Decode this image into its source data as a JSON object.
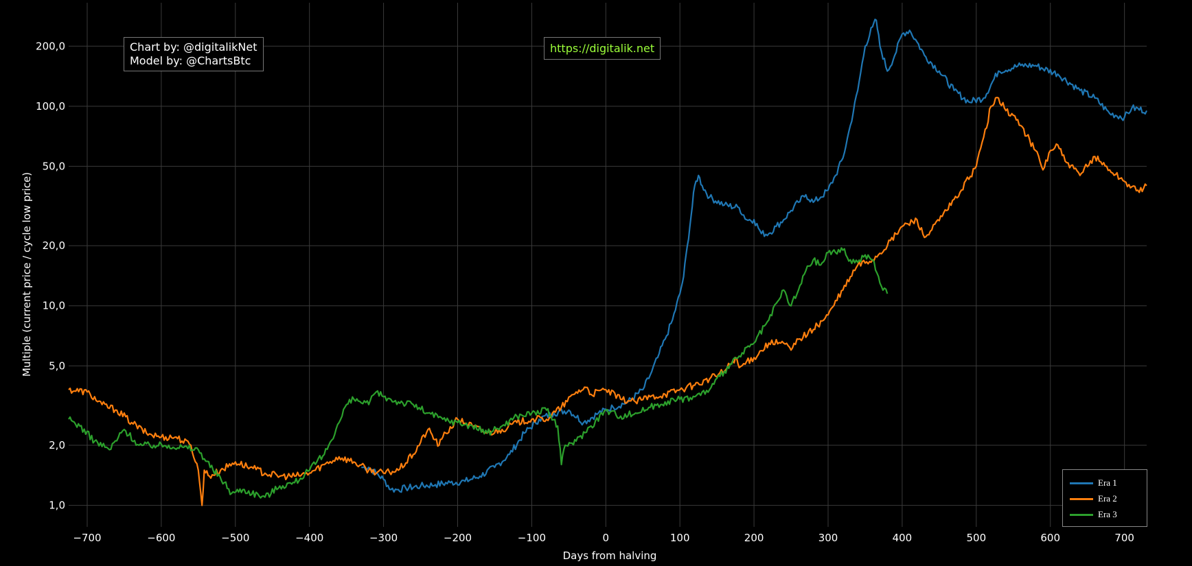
{
  "chart_data": {
    "type": "line",
    "title": "",
    "xlabel": "Days from halving",
    "ylabel": "Multiple (current price / cycle low price)",
    "xlim": [
      -725,
      730
    ],
    "ylim": [
      0.78,
      330
    ],
    "y_scale": "log",
    "x_ticks": [
      "−700",
      "−600",
      "−500",
      "−400",
      "−300",
      "−200",
      "−100",
      "0",
      "100",
      "200",
      "300",
      "400",
      "500",
      "600",
      "700"
    ],
    "y_ticks": [
      "1,0",
      "2,0",
      "5,0",
      "10,0",
      "20,0",
      "50,0",
      "100,0",
      "200,0"
    ],
    "grid": true,
    "legend_position": "bottom-right",
    "annotations": {
      "credit_line1": "Chart by: @digitalikNet",
      "credit_line2": "Model by: @ChartsBtc",
      "url": "https://digitalik.net"
    },
    "series": [
      {
        "name": "Era 1",
        "color": "#1f77b4",
        "x": [
          -330,
          -320,
          -310,
          -300,
          -290,
          -280,
          -270,
          -250,
          -230,
          -210,
          -190,
          -170,
          -150,
          -130,
          -110,
          -90,
          -70,
          -50,
          -30,
          -10,
          10,
          30,
          50,
          60,
          70,
          80,
          90,
          100,
          105,
          110,
          115,
          120,
          125,
          130,
          140,
          160,
          180,
          190,
          200,
          210,
          220,
          230,
          240,
          250,
          260,
          270,
          280,
          290,
          300,
          310,
          320,
          330,
          340,
          350,
          360,
          365,
          370,
          380,
          390,
          400,
          410,
          420,
          430,
          450,
          470,
          490,
          510,
          530,
          560,
          580,
          610,
          640,
          660,
          680,
          700,
          710,
          730
        ],
        "values": [
          1.55,
          1.55,
          1.45,
          1.35,
          1.2,
          1.2,
          1.22,
          1.25,
          1.27,
          1.3,
          1.32,
          1.4,
          1.55,
          1.8,
          2.3,
          2.7,
          2.9,
          3.0,
          2.6,
          2.9,
          3.1,
          3.3,
          3.8,
          4.5,
          5.5,
          6.8,
          8.5,
          11.5,
          14.0,
          20.0,
          28.0,
          40.0,
          45.0,
          40.0,
          35.0,
          32.0,
          31.0,
          27.0,
          27.0,
          23.0,
          23.0,
          25.0,
          27.0,
          30.0,
          33.0,
          36.0,
          33.0,
          35.0,
          38.0,
          45.0,
          55.0,
          80.0,
          120.0,
          200.0,
          250.0,
          270.0,
          200.0,
          150.0,
          180.0,
          230.0,
          240.0,
          210.0,
          180.0,
          150.0,
          120.0,
          105.0,
          110.0,
          150.0,
          160.0,
          160.0,
          145.0,
          120.0,
          110.0,
          92.0,
          88.0,
          98.0,
          95.0
        ]
      },
      {
        "name": "Era 2",
        "color": "#ff7f0e",
        "x": [
          -725,
          -700,
          -680,
          -660,
          -640,
          -620,
          -600,
          -580,
          -560,
          -550,
          -545,
          -542,
          -535,
          -520,
          -500,
          -480,
          -460,
          -440,
          -420,
          -400,
          -380,
          -360,
          -340,
          -320,
          -300,
          -280,
          -260,
          -240,
          -225,
          -220,
          -200,
          -180,
          -160,
          -140,
          -120,
          -100,
          -80,
          -60,
          -40,
          -25,
          -20,
          0,
          20,
          40,
          60,
          80,
          100,
          120,
          140,
          160,
          175,
          180,
          200,
          220,
          240,
          250,
          260,
          280,
          300,
          320,
          340,
          360,
          380,
          400,
          420,
          430,
          440,
          460,
          480,
          500,
          510,
          520,
          530,
          540,
          550,
          560,
          580,
          590,
          600,
          610,
          620,
          640,
          660,
          680,
          700,
          720,
          730
        ],
        "values": [
          3.8,
          3.7,
          3.2,
          3.0,
          2.6,
          2.3,
          2.2,
          2.2,
          2.0,
          1.5,
          1.0,
          1.5,
          1.4,
          1.5,
          1.65,
          1.55,
          1.45,
          1.4,
          1.4,
          1.45,
          1.6,
          1.75,
          1.65,
          1.5,
          1.45,
          1.5,
          1.8,
          2.4,
          2.0,
          2.2,
          2.7,
          2.5,
          2.3,
          2.4,
          2.6,
          2.7,
          2.7,
          3.1,
          3.7,
          3.9,
          3.6,
          3.8,
          3.4,
          3.3,
          3.5,
          3.6,
          3.8,
          4.0,
          4.3,
          4.7,
          5.5,
          4.9,
          5.5,
          6.5,
          6.5,
          6.0,
          6.8,
          7.6,
          9.0,
          12.0,
          16.0,
          17.0,
          20.0,
          25.0,
          27.0,
          22.0,
          24.0,
          30.0,
          38.0,
          50.0,
          70.0,
          100.0,
          110.0,
          95.0,
          90.0,
          80.0,
          60.0,
          48.0,
          60.0,
          64.0,
          53.0,
          45.0,
          56.0,
          48.0,
          42.0,
          37.0,
          40.0
        ]
      },
      {
        "name": "Era 3",
        "color": "#2ca02c",
        "x": [
          -725,
          -710,
          -690,
          -670,
          -650,
          -630,
          -610,
          -590,
          -570,
          -550,
          -530,
          -515,
          -505,
          -490,
          -460,
          -440,
          -420,
          -400,
          -380,
          -360,
          -350,
          -340,
          -320,
          -310,
          -300,
          -280,
          -260,
          -240,
          -220,
          -200,
          -180,
          -160,
          -140,
          -120,
          -100,
          -80,
          -65,
          -60,
          -55,
          -40,
          -20,
          0,
          20,
          40,
          60,
          80,
          100,
          120,
          140,
          160,
          180,
          200,
          220,
          240,
          250,
          260,
          270,
          280,
          290,
          300,
          320,
          330,
          340,
          350,
          360,
          370,
          380
        ],
        "values": [
          2.7,
          2.5,
          2.1,
          1.9,
          2.4,
          2.0,
          2.0,
          2.0,
          1.95,
          1.9,
          1.5,
          1.3,
          1.15,
          1.2,
          1.1,
          1.25,
          1.3,
          1.5,
          1.8,
          2.6,
          3.2,
          3.4,
          3.2,
          3.7,
          3.5,
          3.3,
          3.2,
          2.9,
          2.7,
          2.6,
          2.5,
          2.3,
          2.5,
          2.8,
          2.9,
          3.0,
          2.5,
          1.6,
          2.0,
          2.1,
          2.5,
          3.0,
          2.8,
          2.9,
          3.1,
          3.3,
          3.4,
          3.5,
          3.8,
          4.7,
          5.6,
          6.5,
          8.5,
          12.0,
          10.0,
          12.0,
          15.0,
          17.0,
          16.0,
          18.5,
          19.0,
          17.0,
          16.5,
          18.0,
          17.0,
          13.0,
          11.5
        ]
      }
    ]
  }
}
